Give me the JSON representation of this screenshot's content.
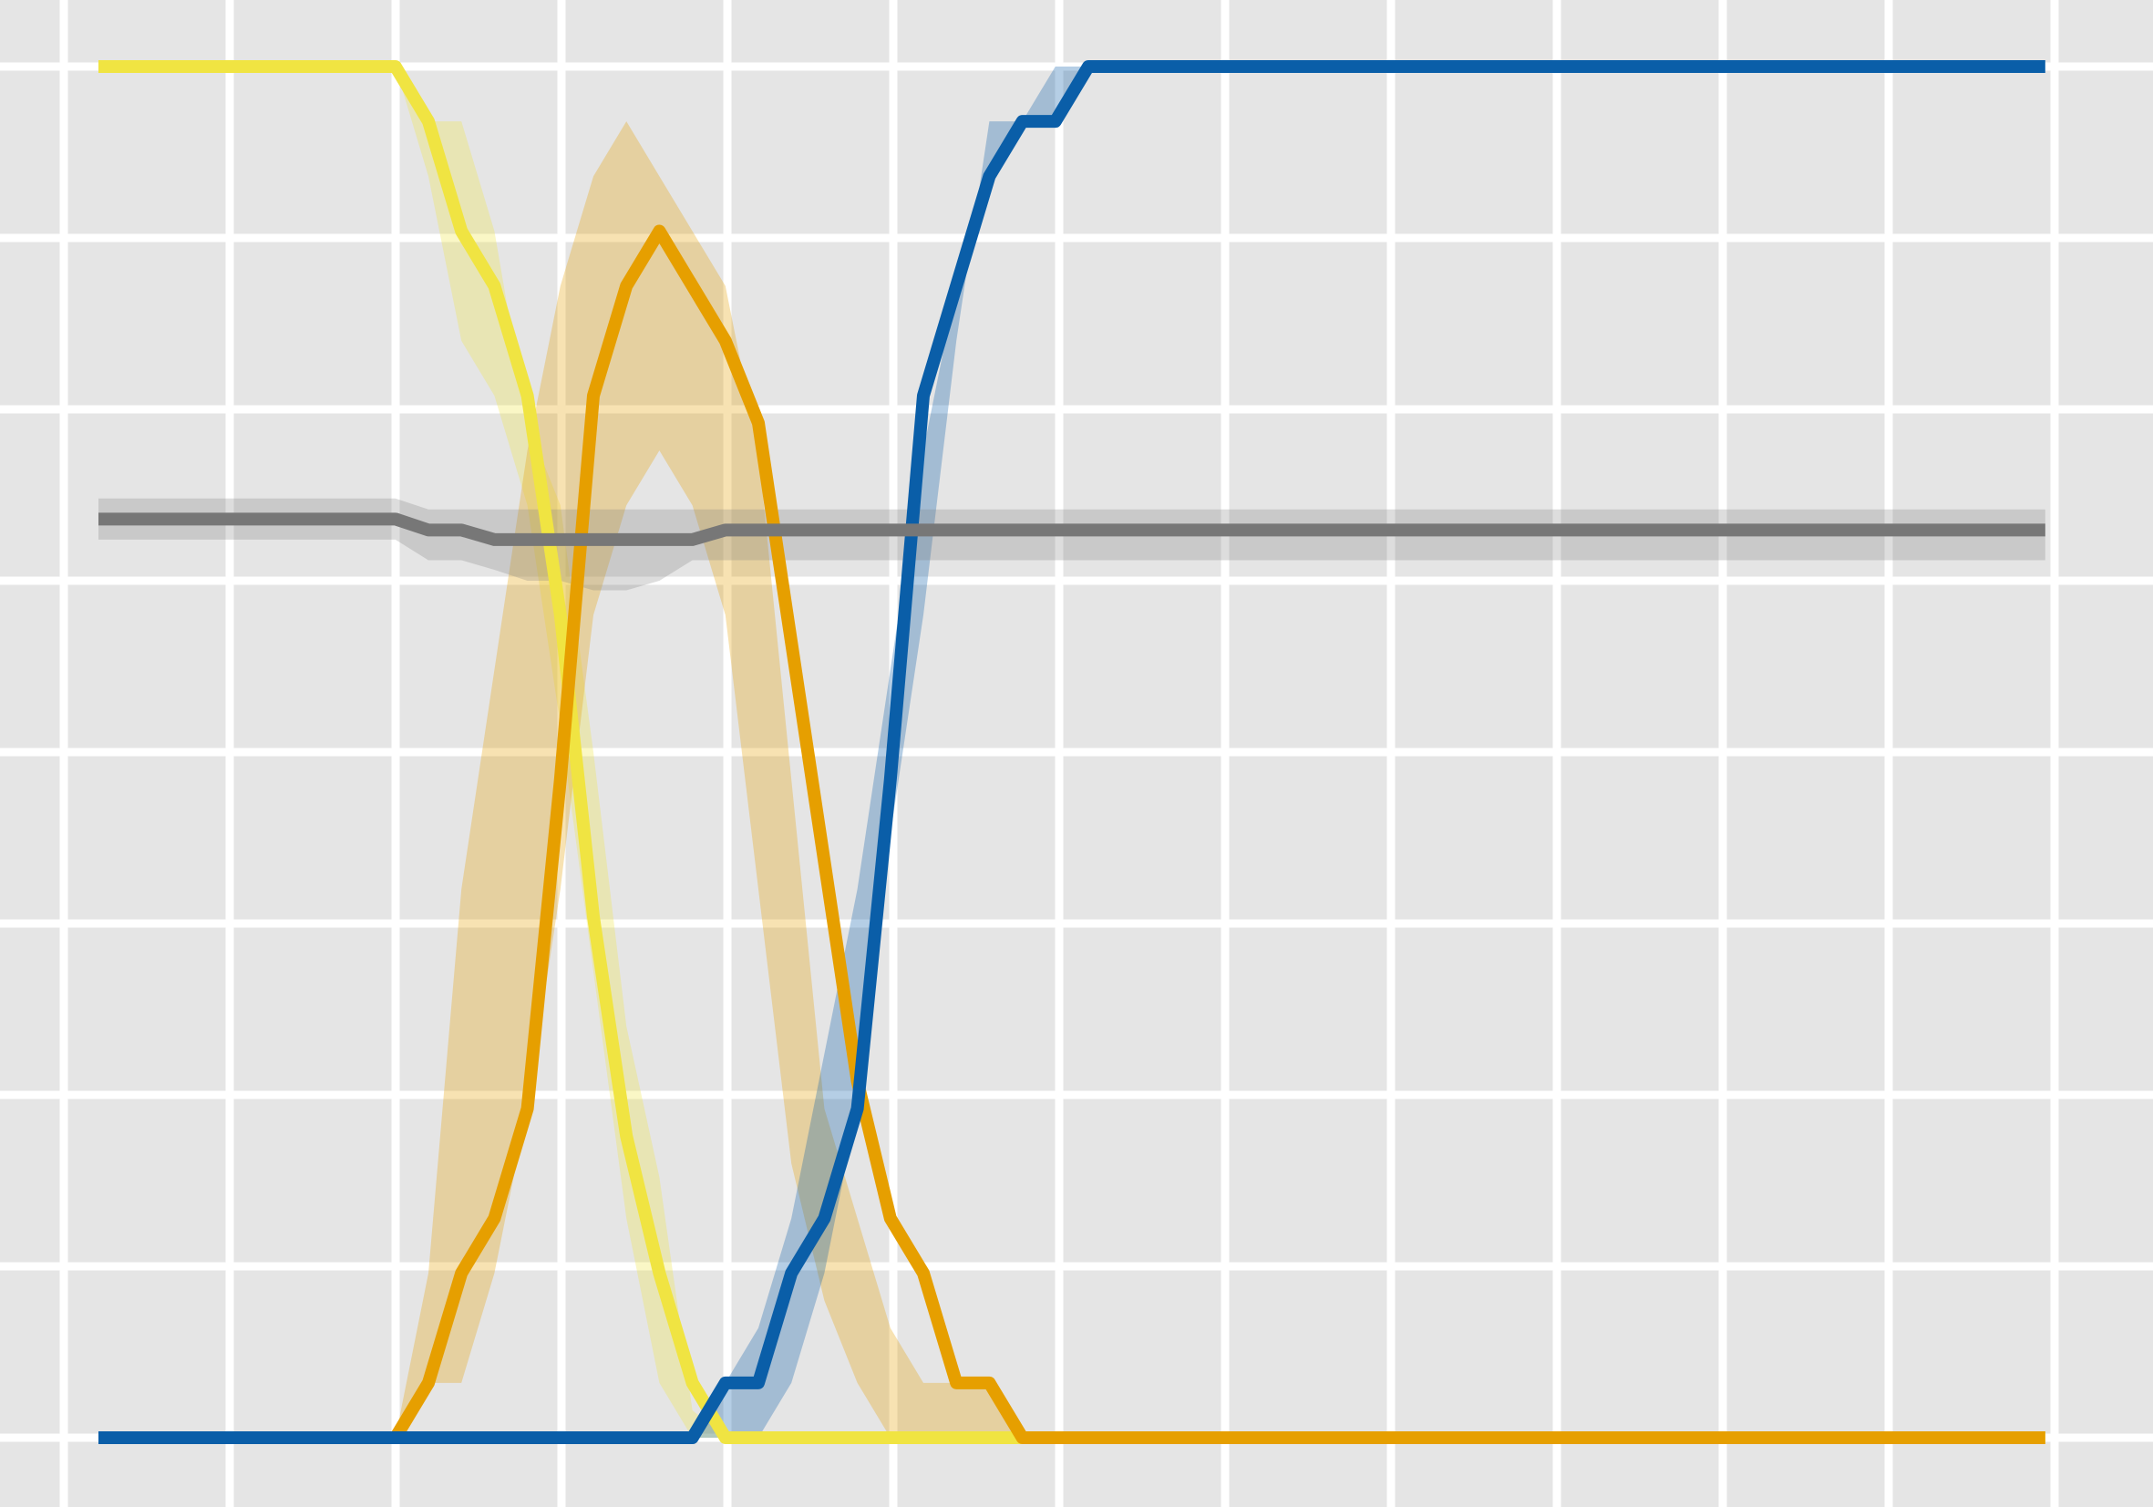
{
  "chart_data": {
    "type": "line",
    "title": "",
    "xlabel": "",
    "ylabel": "",
    "grid": true,
    "legend": "none",
    "background_color": "#e5e5e5",
    "grid_color": "#ffffff",
    "xlim": [
      0,
      60
    ],
    "ylim": [
      -0.02,
      1.02
    ],
    "x": [
      0,
      9,
      10,
      11,
      12,
      13,
      14,
      15,
      16,
      17,
      18,
      19,
      20,
      21,
      22,
      23,
      24,
      25,
      26,
      27,
      28,
      29,
      30,
      31,
      32,
      33,
      34,
      59
    ],
    "series": [
      {
        "color": "#f0e442",
        "values": [
          1.0,
          1.0,
          0.96,
          0.88,
          0.84,
          0.76,
          0.6,
          0.38,
          0.22,
          0.12,
          0.04,
          0.0,
          0.0,
          0.0,
          0.0,
          0.0,
          0.0,
          0.0,
          0.0,
          0.0,
          0.0,
          0.0,
          0.0,
          0.0,
          0.0,
          0.0,
          0.0,
          0.0
        ],
        "band_lower": [
          1.0,
          1.0,
          0.92,
          0.8,
          0.76,
          0.68,
          0.52,
          0.34,
          0.16,
          0.04,
          0.0,
          0.0,
          0.0,
          0.0,
          0.0,
          0.0,
          0.0,
          0.0,
          0.0,
          0.0,
          0.0,
          0.0,
          0.0,
          0.0,
          0.0,
          0.0,
          0.0,
          0.0
        ],
        "band_upper": [
          1.0,
          1.0,
          0.96,
          0.96,
          0.88,
          0.74,
          0.68,
          0.5,
          0.3,
          0.19,
          0.02,
          0.0,
          0.0,
          0.0,
          0.0,
          0.0,
          0.0,
          0.0,
          0.0,
          0.0,
          0.0,
          0.0,
          0.0,
          0.0,
          0.0,
          0.0,
          0.0,
          0.0
        ]
      },
      {
        "color": "#e69f00",
        "values": [
          0.0,
          0.0,
          0.04,
          0.12,
          0.16,
          0.24,
          0.48,
          0.76,
          0.84,
          0.88,
          0.84,
          0.8,
          0.74,
          0.58,
          0.42,
          0.26,
          0.16,
          0.12,
          0.04,
          0.04,
          0.0,
          0.0,
          0.0,
          0.0,
          0.0,
          0.0,
          0.0,
          0.0
        ],
        "band_lower": [
          0.0,
          0.0,
          0.04,
          0.04,
          0.12,
          0.24,
          0.4,
          0.6,
          0.68,
          0.72,
          0.68,
          0.6,
          0.4,
          0.2,
          0.1,
          0.04,
          0.0,
          0.0,
          0.0,
          0.0,
          0.0,
          0.0,
          0.0,
          0.0,
          0.0,
          0.0,
          0.0,
          0.0
        ],
        "band_upper": [
          0.0,
          0.0,
          0.12,
          0.4,
          0.56,
          0.72,
          0.84,
          0.92,
          0.96,
          0.92,
          0.88,
          0.84,
          0.72,
          0.48,
          0.24,
          0.16,
          0.08,
          0.04,
          0.04,
          0.04,
          0.0,
          0.0,
          0.0,
          0.0,
          0.0,
          0.0,
          0.0,
          0.0
        ]
      },
      {
        "color": "#0a5ea8",
        "values": [
          0.0,
          0.0,
          0.0,
          0.0,
          0.0,
          0.0,
          0.0,
          0.0,
          0.0,
          0.0,
          0.0,
          0.04,
          0.04,
          0.12,
          0.16,
          0.24,
          0.48,
          0.76,
          0.84,
          0.92,
          0.96,
          0.96,
          1.0,
          1.0,
          1.0,
          1.0,
          1.0,
          1.0
        ],
        "band_lower": [
          0.0,
          0.0,
          0.0,
          0.0,
          0.0,
          0.0,
          0.0,
          0.0,
          0.0,
          0.0,
          0.0,
          0.0,
          0.0,
          0.04,
          0.12,
          0.24,
          0.44,
          0.6,
          0.8,
          0.96,
          0.96,
          0.96,
          1.0,
          1.0,
          1.0,
          1.0,
          1.0,
          1.0
        ],
        "band_upper": [
          0.0,
          0.0,
          0.0,
          0.0,
          0.0,
          0.0,
          0.0,
          0.0,
          0.0,
          0.0,
          0.0,
          0.04,
          0.08,
          0.16,
          0.28,
          0.4,
          0.56,
          0.72,
          0.84,
          0.92,
          0.96,
          1.0,
          1.0,
          1.0,
          1.0,
          1.0,
          1.0,
          1.0
        ]
      },
      {
        "color": "#777777",
        "values": [
          0.67,
          0.67,
          0.662,
          0.662,
          0.655,
          0.655,
          0.655,
          0.655,
          0.655,
          0.655,
          0.655,
          0.662,
          0.662,
          0.662,
          0.662,
          0.662,
          0.662,
          0.662,
          0.662,
          0.662,
          0.662,
          0.662,
          0.662,
          0.662,
          0.662,
          0.662,
          0.662,
          0.662
        ],
        "band_lower": [
          0.655,
          0.655,
          0.64,
          0.64,
          0.633,
          0.625,
          0.625,
          0.618,
          0.618,
          0.625,
          0.64,
          0.64,
          0.64,
          0.64,
          0.64,
          0.64,
          0.64,
          0.64,
          0.64,
          0.64,
          0.64,
          0.64,
          0.64,
          0.64,
          0.64,
          0.64,
          0.64,
          0.64
        ],
        "band_upper": [
          0.685,
          0.685,
          0.677,
          0.677,
          0.677,
          0.677,
          0.677,
          0.677,
          0.677,
          0.677,
          0.677,
          0.677,
          0.677,
          0.677,
          0.677,
          0.677,
          0.677,
          0.677,
          0.677,
          0.677,
          0.677,
          0.677,
          0.677,
          0.677,
          0.677,
          0.677,
          0.677,
          0.677
        ]
      }
    ]
  }
}
